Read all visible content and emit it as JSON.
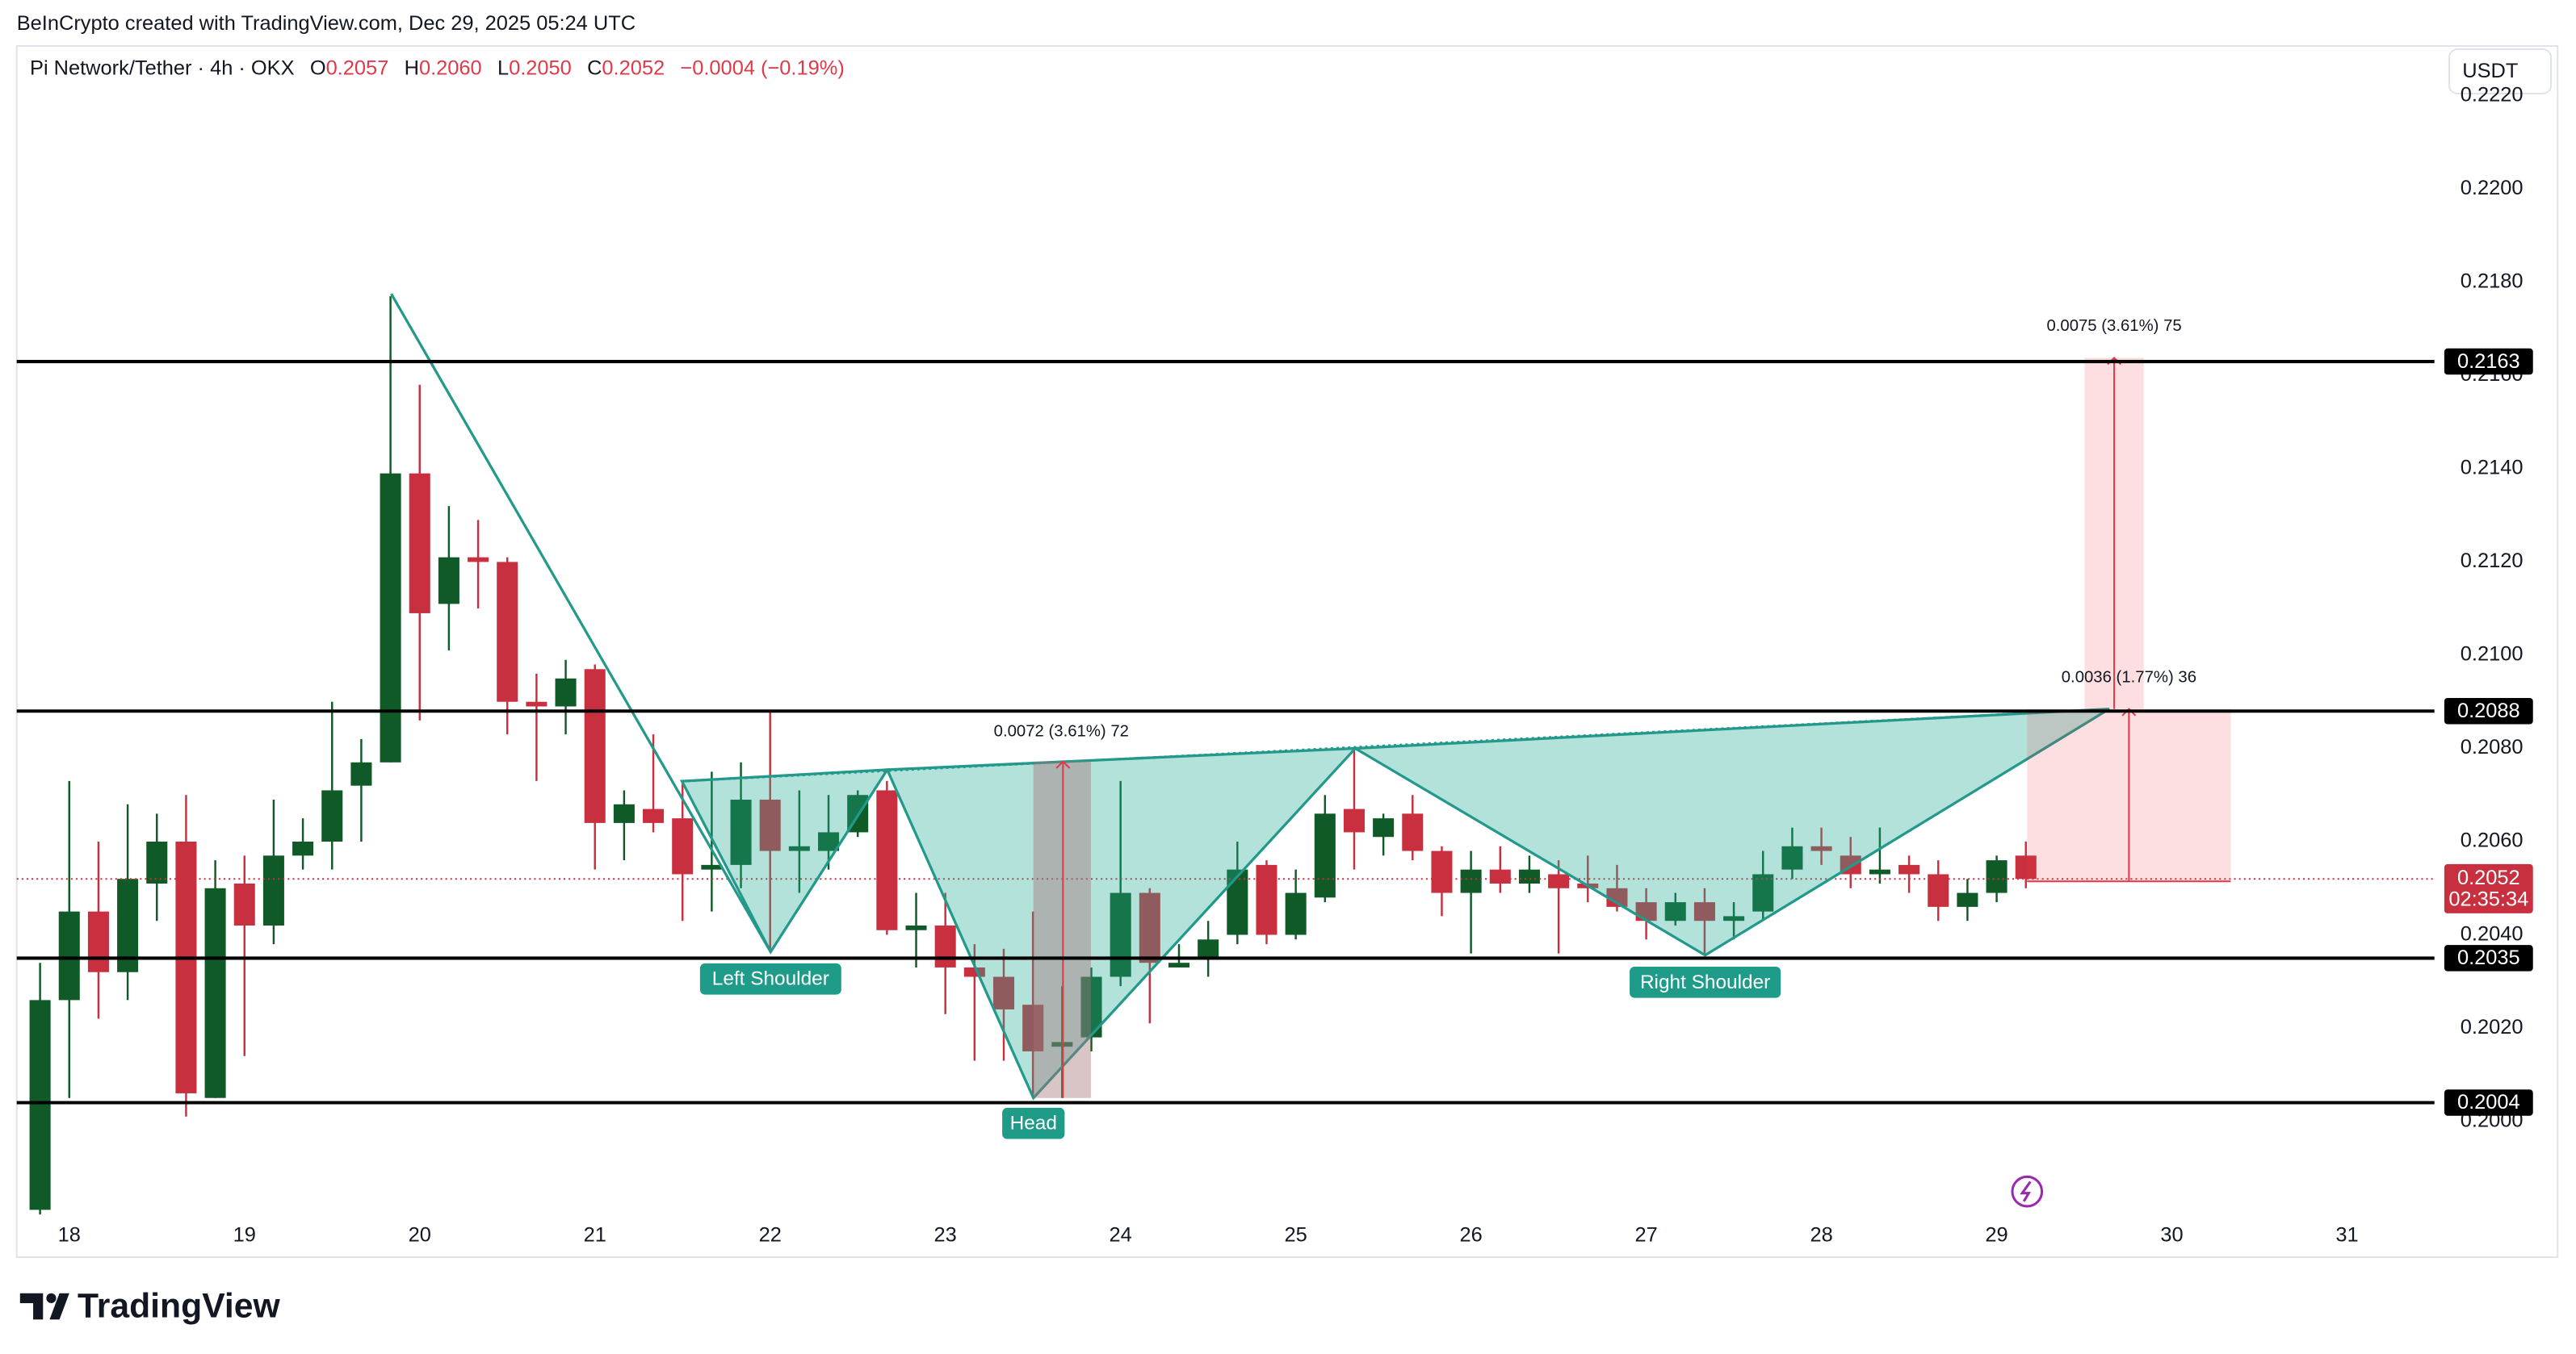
{
  "header": {
    "attribution": "BeInCrypto created with TradingView.com, Dec 29, 2025 05:24 UTC",
    "symbol": "Pi Network/Tether · 4h · OKX",
    "ohlc": [
      [
        "O",
        "0.2057"
      ],
      [
        "H",
        "0.2060"
      ],
      [
        "L",
        "0.2050"
      ],
      [
        "C",
        "0.2052"
      ]
    ],
    "change": "−0.0004 (−0.19%)",
    "currency": "USDT"
  },
  "footer": {
    "brand": "TradingView"
  },
  "chart_data": {
    "type": "candlestick",
    "categories": [
      null,
      "18",
      null,
      null,
      null,
      null,
      null,
      "19",
      null,
      null,
      null,
      null,
      null,
      "20",
      null,
      null,
      null,
      null,
      null,
      "21",
      null,
      null,
      null,
      null,
      null,
      "22",
      null,
      null,
      null,
      null,
      null,
      "23",
      null,
      null,
      null,
      null,
      null,
      "24",
      null,
      null,
      null,
      null,
      null,
      "25",
      null,
      null,
      null,
      null,
      null,
      "26",
      null,
      null,
      null,
      null,
      null,
      "27",
      null,
      null,
      null,
      null,
      null,
      "28",
      null,
      null,
      null,
      null,
      null,
      "29",
      null,
      null,
      null,
      null,
      null,
      "30",
      null,
      null,
      null,
      null,
      null,
      "31",
      null,
      null,
      null
    ],
    "open": [
      0.1981,
      0.2026,
      0.2045,
      0.2032,
      0.2051,
      0.206,
      0.2005,
      0.2051,
      0.2042,
      0.2057,
      0.206,
      0.2072,
      0.2077,
      0.2139,
      0.2111,
      0.2121,
      0.212,
      0.209,
      0.2089,
      0.2097,
      0.2064,
      0.2067,
      0.2065,
      0.2054,
      0.2055,
      0.2069,
      0.2058,
      0.2058,
      0.2062,
      0.2071,
      0.2041,
      0.2042,
      0.2033,
      0.2031,
      0.2025,
      0.2016,
      0.2018,
      0.2031,
      0.2049,
      0.2033,
      0.2035,
      0.204,
      0.2055,
      0.204,
      0.2048,
      0.2067,
      0.2061,
      0.2066,
      0.2058,
      0.2049,
      0.2054,
      0.2051,
      0.2053,
      0.2051,
      0.205,
      0.2047,
      0.2043,
      0.2047,
      0.2043,
      0.2045,
      0.2054,
      0.2059,
      0.2057,
      0.2053,
      0.2055,
      0.2053,
      0.2046,
      0.2049,
      0.2057,
      null,
      null,
      null,
      null,
      null,
      null,
      null,
      null,
      null,
      null,
      null,
      null,
      null,
      null
    ],
    "high": [
      0.2034,
      0.2073,
      0.206,
      0.2068,
      0.2066,
      0.207,
      0.2056,
      0.2057,
      0.2069,
      0.2065,
      0.209,
      0.2082,
      0.2177,
      0.2158,
      0.2132,
      0.2129,
      0.2121,
      0.2096,
      0.2099,
      0.2098,
      0.2071,
      0.2083,
      0.2073,
      0.2075,
      0.2077,
      0.2088,
      0.2071,
      0.207,
      0.2071,
      0.2073,
      0.2049,
      0.2049,
      0.2038,
      0.2037,
      0.2045,
      0.2029,
      0.2033,
      0.2073,
      0.205,
      0.2038,
      0.2043,
      0.206,
      0.2056,
      0.2054,
      0.207,
      0.208,
      0.2066,
      0.207,
      0.2059,
      0.2058,
      0.2059,
      0.2057,
      0.2056,
      0.2057,
      0.2055,
      0.205,
      0.2049,
      0.205,
      0.2047,
      0.2058,
      0.2063,
      0.2063,
      0.2061,
      0.2063,
      0.2057,
      0.2056,
      0.2052,
      0.2057,
      0.206,
      null,
      null,
      null,
      null,
      null,
      null,
      null,
      null,
      null,
      null,
      null,
      null,
      null,
      null
    ],
    "low": [
      0.198,
      0.2005,
      0.2022,
      0.2026,
      0.2043,
      0.2001,
      0.2005,
      0.2014,
      0.2038,
      0.2054,
      0.2054,
      0.206,
      0.2077,
      0.2086,
      0.2101,
      0.211,
      0.2083,
      0.2073,
      0.2083,
      0.2054,
      0.2056,
      0.2062,
      0.2043,
      0.2045,
      0.205,
      0.2037,
      0.2049,
      0.2054,
      0.2061,
      0.204,
      0.2033,
      0.2023,
      0.2013,
      0.2013,
      0.2005,
      0.2005,
      0.2015,
      0.2029,
      0.2021,
      0.2033,
      0.2031,
      0.2038,
      0.2038,
      0.2039,
      0.2047,
      0.2054,
      0.2057,
      0.2056,
      0.2044,
      0.2036,
      0.2049,
      0.2049,
      0.2036,
      0.2047,
      0.2045,
      0.2039,
      0.2042,
      0.2036,
      0.2039,
      0.2043,
      0.2052,
      0.2055,
      0.205,
      0.2051,
      0.2049,
      0.2043,
      0.2043,
      0.2047,
      0.205,
      null,
      null,
      null,
      null,
      null,
      null,
      null,
      null,
      null,
      null,
      null,
      null,
      null,
      null
    ],
    "close": [
      0.2026,
      0.2045,
      0.2032,
      0.2052,
      0.206,
      0.2006,
      0.205,
      0.2042,
      0.2057,
      0.206,
      0.2071,
      0.2077,
      0.2139,
      0.2109,
      0.2121,
      0.212,
      0.209,
      0.2089,
      0.2095,
      0.2064,
      0.2068,
      0.2064,
      0.2053,
      0.2055,
      0.2069,
      0.2058,
      0.2059,
      0.2062,
      0.207,
      0.2041,
      0.2042,
      0.2033,
      0.2031,
      0.2024,
      0.2015,
      0.2017,
      0.2031,
      0.2049,
      0.2034,
      0.2034,
      0.2039,
      0.2054,
      0.204,
      0.2049,
      0.2066,
      0.2062,
      0.2065,
      0.2058,
      0.2049,
      0.2054,
      0.2051,
      0.2054,
      0.205,
      0.205,
      0.2046,
      0.2043,
      0.2047,
      0.2043,
      0.2044,
      0.2053,
      0.2059,
      0.2058,
      0.2053,
      0.2054,
      0.2053,
      0.2046,
      0.2049,
      0.2056,
      0.2052,
      null,
      null,
      null,
      null,
      null,
      null,
      null,
      null,
      null,
      null,
      null,
      null,
      null,
      null
    ],
    "up_color": "#0f5a26",
    "down_color": "#c9303f",
    "ylim": [
      0.198,
      0.223
    ],
    "yticks": [
      {
        "value": 0.2,
        "label": "0.2000"
      },
      {
        "value": 0.202,
        "label": "0.2020"
      },
      {
        "value": 0.204,
        "label": "0.2040"
      },
      {
        "value": 0.206,
        "label": "0.2060"
      },
      {
        "value": 0.208,
        "label": "0.2080"
      },
      {
        "value": 0.21,
        "label": "0.2100"
      },
      {
        "value": 0.212,
        "label": "0.2120"
      },
      {
        "value": 0.214,
        "label": "0.2140"
      },
      {
        "value": 0.216,
        "label": "0.2160"
      },
      {
        "value": 0.218,
        "label": "0.2180"
      },
      {
        "value": 0.22,
        "label": "0.2200"
      },
      {
        "value": 0.222,
        "label": "0.2220"
      }
    ],
    "levels": [
      0.2163,
      0.2088,
      0.2035,
      0.2004
    ],
    "level_color": "#000000",
    "last_price": 0.2052,
    "countdown": "02:35:34",
    "annotations": {
      "left_shoulder": "Left Shoulder",
      "head": "Head",
      "right_shoulder": "Right Shoulder",
      "measure_head": "0.0072 (3.61%) 72",
      "target": "0.0075 (3.61%) 75",
      "measure_breakout": "0.0036 (1.77%) 36"
    }
  }
}
